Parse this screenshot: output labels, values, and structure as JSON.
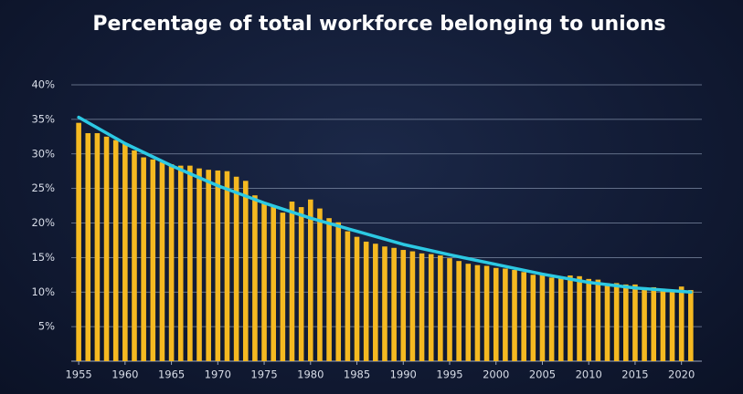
{
  "chart_data": {
    "type": "bar",
    "title": "Percentage of total workforce belonging to unions",
    "xlim": [
      1954.2,
      2022.2
    ],
    "xticks": [
      1955,
      1960,
      1965,
      1970,
      1975,
      1980,
      1985,
      1990,
      1995,
      2000,
      2005,
      2010,
      2015,
      2020
    ],
    "ylim": [
      0,
      40
    ],
    "yticks": [
      {
        "value": 5,
        "label": "5%"
      },
      {
        "value": 10,
        "label": "10%"
      },
      {
        "value": 15,
        "label": "15%"
      },
      {
        "value": 20,
        "label": "20%"
      },
      {
        "value": 25,
        "label": "25%"
      },
      {
        "value": 30,
        "label": "30%"
      },
      {
        "value": 35,
        "label": "35%"
      },
      {
        "value": 40,
        "label": "40%"
      }
    ],
    "grid": true,
    "series": [
      {
        "type": "bar",
        "color": "#f5b921",
        "x": [
          1955,
          1956,
          1957,
          1958,
          1959,
          1960,
          1961,
          1962,
          1963,
          1964,
          1965,
          1966,
          1967,
          1968,
          1969,
          1970,
          1971,
          1972,
          1973,
          1974,
          1975,
          1976,
          1977,
          1978,
          1979,
          1980,
          1981,
          1982,
          1983,
          1984,
          1985,
          1986,
          1987,
          1988,
          1989,
          1990,
          1991,
          1992,
          1993,
          1994,
          1995,
          1996,
          1997,
          1998,
          1999,
          2000,
          2001,
          2002,
          2003,
          2004,
          2005,
          2006,
          2007,
          2008,
          2009,
          2010,
          2011,
          2012,
          2013,
          2014,
          2015,
          2016,
          2017,
          2018,
          2019,
          2020,
          2021
        ],
        "values": [
          34.5,
          33,
          33,
          32.5,
          32,
          31.5,
          30.5,
          29.5,
          29.2,
          28.8,
          28.5,
          28.3,
          28.3,
          27.9,
          27.7,
          27.6,
          27.5,
          26.7,
          26.1,
          24,
          23,
          22.5,
          21.5,
          23.1,
          22.3,
          23.4,
          22.1,
          20.7,
          20.1,
          18.8,
          18,
          17.3,
          17,
          16.6,
          16.4,
          16.1,
          15.9,
          15.6,
          15.5,
          15.3,
          14.9,
          14.5,
          14.1,
          13.9,
          13.8,
          13.5,
          13.4,
          13.2,
          12.9,
          12.5,
          12.5,
          12.1,
          12.1,
          12.4,
          12.3,
          11.9,
          11.8,
          11.3,
          11.3,
          11.1,
          11.1,
          10.7,
          10.7,
          10.5,
          10.3,
          10.8,
          10.3
        ]
      },
      {
        "type": "line",
        "color": "#2cc9e3",
        "x": [
          1955,
          1960,
          1965,
          1970,
          1975,
          1980,
          1985,
          1990,
          1995,
          2000,
          2005,
          2010,
          2015,
          2021
        ],
        "values": [
          35.3,
          31.5,
          28.3,
          25.4,
          22.9,
          20.7,
          18.8,
          16.9,
          15.4,
          14.0,
          12.6,
          11.4,
          10.6,
          10.0
        ]
      }
    ]
  }
}
